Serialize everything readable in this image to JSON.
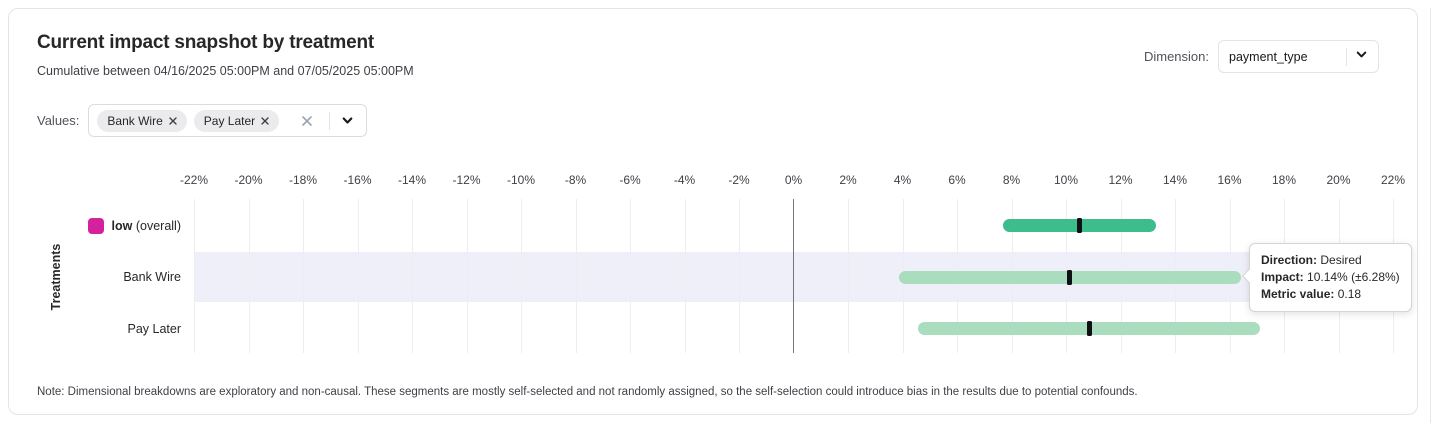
{
  "header": {
    "title": "Current impact snapshot by treatment",
    "subtitle": "Cumulative between 04/16/2025 05:00PM and 07/05/2025 05:00PM",
    "dimension_label": "Dimension:",
    "dimension_value": "payment_type"
  },
  "filters": {
    "values_label": "Values:",
    "chips": [
      "Bank Wire",
      "Pay Later"
    ]
  },
  "chart_data": {
    "type": "range_bar",
    "orientation": "horizontal",
    "ylabel": "Treatments",
    "axis": {
      "min": -22,
      "max": 22,
      "step": 2,
      "unit": "%"
    },
    "tick_labels": [
      "-22%",
      "-20%",
      "-18%",
      "-16%",
      "-14%",
      "-12%",
      "-10%",
      "-8%",
      "-6%",
      "-4%",
      "-2%",
      "0%",
      "2%",
      "4%",
      "6%",
      "8%",
      "10%",
      "12%",
      "14%",
      "16%",
      "18%",
      "20%",
      "22%"
    ],
    "grid": true,
    "rows": [
      {
        "label": "low",
        "label_suffix": "(overall)",
        "swatch_color": "#d4219c",
        "bar_color": "#3dbc8c",
        "impact": 10.5,
        "ci_low": 7.7,
        "ci_high": 13.3,
        "highlighted": false
      },
      {
        "label": "Bank Wire",
        "label_suffix": "",
        "swatch_color": "",
        "bar_color": "#a9ddbe",
        "impact": 10.14,
        "ci_low": 3.86,
        "ci_high": 16.42,
        "highlighted": true
      },
      {
        "label": "Pay Later",
        "label_suffix": "",
        "swatch_color": "",
        "bar_color": "#a9ddbe",
        "impact": 10.85,
        "ci_low": 4.58,
        "ci_high": 17.12,
        "highlighted": false
      }
    ],
    "marker_color": "#101014",
    "highlight_band_color": "#efeffa",
    "zero_line_color": "#75757d"
  },
  "tooltip": {
    "direction_label": "Direction:",
    "direction_value": "Desired",
    "impact_label": "Impact:",
    "impact_value": "10.14% (±6.28%)",
    "metric_label": "Metric value:",
    "metric_value": "0.18"
  },
  "note": "Note: Dimensional breakdowns are exploratory and non-causal. These segments are mostly self-selected and not randomly assigned, so the self-selection could introduce bias in the results due to potential confounds."
}
